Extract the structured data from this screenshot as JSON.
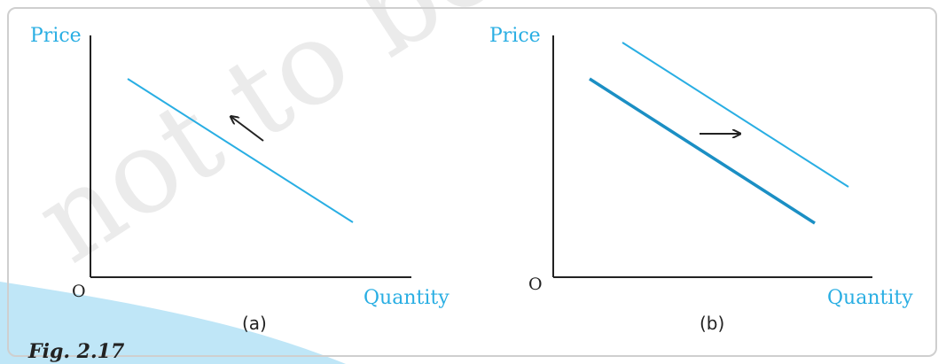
{
  "figure": {
    "caption": "Fig. 2.17",
    "panels": [
      {
        "tag": "(a)",
        "y_axis_label": "Price",
        "x_axis_label": "Quantity",
        "origin_label": "O"
      },
      {
        "tag": "(b)",
        "y_axis_label": "Price",
        "x_axis_label": "Quantity",
        "origin_label": "O"
      }
    ]
  },
  "watermark": {
    "text": "not to be republished"
  },
  "colors": {
    "curve": "#29aee3",
    "curve_dark": "#1b8fc4",
    "axis": "#222222",
    "watermark": "#e8e8e8",
    "caption_band": "#bfe6f7"
  }
}
